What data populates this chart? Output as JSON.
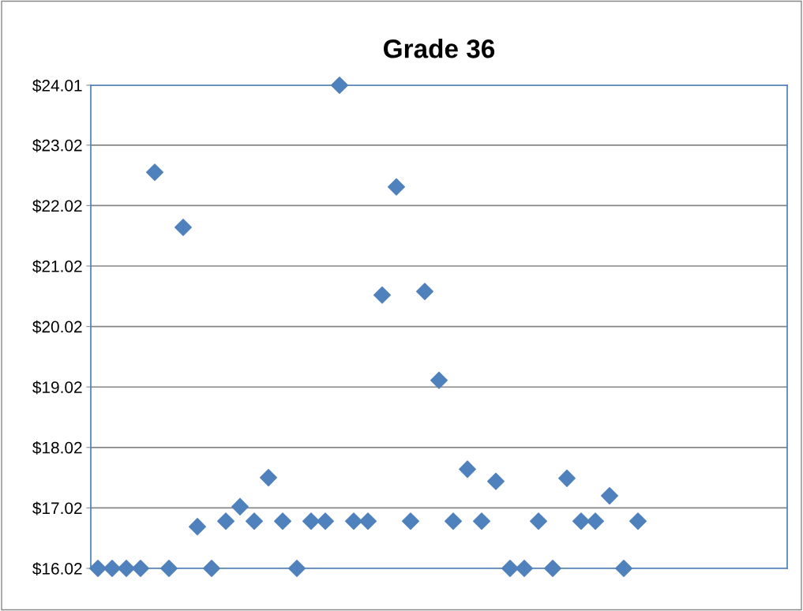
{
  "chart_data": {
    "type": "scatter",
    "title": "Grade 36",
    "categories": [
      null,
      null,
      null,
      null,
      null,
      null,
      null,
      null,
      null,
      null,
      null,
      null,
      null,
      null,
      null,
      null,
      null,
      null,
      null,
      null,
      null,
      null,
      null,
      null,
      null,
      null,
      null,
      null,
      null,
      null,
      null,
      null,
      null,
      null,
      null,
      null,
      null,
      null,
      null,
      null,
      null,
      null,
      null,
      null,
      null,
      null,
      null,
      null,
      null
    ],
    "series": [
      {
        "color": "#4f81bd",
        "values": [
          16.02,
          16.02,
          16.02,
          16.02,
          22.57,
          16.02,
          21.66,
          16.71,
          16.02,
          16.8,
          17.04,
          16.8,
          17.52,
          16.8,
          16.02,
          16.8,
          16.8,
          24.01,
          16.8,
          16.8,
          20.54,
          22.33,
          16.8,
          20.6,
          19.13,
          16.8,
          17.66,
          16.8,
          17.46,
          16.02,
          16.02,
          16.8,
          16.02,
          17.51,
          16.8,
          16.8,
          17.22,
          16.02,
          16.8,
          null,
          null,
          null,
          null,
          null,
          null,
          null,
          null,
          null,
          null
        ]
      }
    ],
    "ylim": [
      16.02,
      24.01
    ],
    "yticks": [
      {
        "value": 16.02,
        "label": "$16.02"
      },
      {
        "value": 17.02,
        "label": "$17.02"
      },
      {
        "value": 18.02,
        "label": "$18.02"
      },
      {
        "value": 19.02,
        "label": "$19.02"
      },
      {
        "value": 20.02,
        "label": "$20.02"
      },
      {
        "value": 21.02,
        "label": "$21.02"
      },
      {
        "value": 22.02,
        "label": "$22.02"
      },
      {
        "value": 23.02,
        "label": "$23.02"
      },
      {
        "value": 24.01,
        "label": "$24.01"
      }
    ],
    "tick_labels": "y",
    "grid": "y",
    "marker": "diamond"
  }
}
